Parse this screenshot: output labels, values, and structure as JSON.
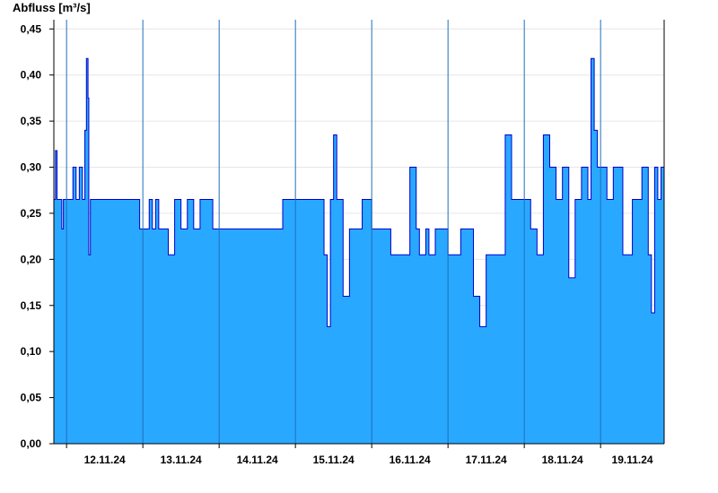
{
  "chart_data": {
    "type": "area",
    "title": "",
    "xlabel": "",
    "ylabel": "Abfluss [m³/s]",
    "ylim": [
      0,
      0.46
    ],
    "yticks": [
      0,
      0.05,
      0.1,
      0.15,
      0.2,
      0.25,
      0.3,
      0.35,
      0.4,
      0.45
    ],
    "ytick_labels": [
      "0,00",
      "0,05",
      "0,10",
      "0,15",
      "0,20",
      "0,25",
      "0,30",
      "0,35",
      "0,40",
      "0,45"
    ],
    "xlim": [
      "11.11.24 20:00",
      "19.11.24 20:00"
    ],
    "day_boundaries": [
      "12.11.24 00:00",
      "13.11.24 00:00",
      "14.11.24 00:00",
      "15.11.24 00:00",
      "16.11.24 00:00",
      "17.11.24 00:00",
      "18.11.24 00:00",
      "19.11.24 00:00"
    ],
    "day_labels": [
      "12.11.24",
      "13.11.24",
      "14.11.24",
      "15.11.24",
      "16.11.24",
      "17.11.24",
      "18.11.24",
      "19.11.24"
    ],
    "grid": true,
    "series": [
      {
        "name": "",
        "color": "#0000cc",
        "fill": "#29a8ff",
        "x": [
          "11.11.24 20:00",
          "11.11.24 20:30",
          "11.11.24 21:00",
          "11.11.24 22:00",
          "11.11.24 22:30",
          "11.11.24 23:00",
          "12.11.24 01:30",
          "12.11.24 02:00",
          "12.11.24 03:00",
          "12.11.24 04:00",
          "12.11.24 05:00",
          "12.11.24 05:45",
          "12.11.24 06:15",
          "12.11.24 06:45",
          "12.11.24 07:00",
          "12.11.24 07:30",
          "12.11.24 08:00",
          "12.11.24 12:00",
          "12.11.24 21:00",
          "12.11.24 23:00",
          "13.11.24 02:00",
          "13.11.24 03:00",
          "13.11.24 04:00",
          "13.11.24 05:00",
          "13.11.24 06:00",
          "13.11.24 08:00",
          "13.11.24 10:00",
          "13.11.24 12:00",
          "13.11.24 14:00",
          "13.11.24 16:00",
          "13.11.24 18:00",
          "13.11.24 20:00",
          "13.11.24 22:00",
          "14.11.24 01:00",
          "14.11.24 05:00",
          "14.11.24 12:00",
          "14.11.24 18:00",
          "14.11.24 20:00",
          "14.11.24 23:00",
          "15.11.24 08:00",
          "15.11.24 09:00",
          "15.11.24 10:00",
          "15.11.24 11:00",
          "15.11.24 12:00",
          "15.11.24 13:00",
          "15.11.24 15:00",
          "15.11.24 17:00",
          "15.11.24 19:00",
          "15.11.24 21:00",
          "16.11.24 00:00",
          "16.11.24 03:00",
          "16.11.24 06:00",
          "16.11.24 12:00",
          "16.11.24 14:00",
          "16.11.24 15:00",
          "16.11.24 17:00",
          "16.11.24 18:00",
          "16.11.24 20:00",
          "16.11.24 22:00",
          "17.11.24 00:00",
          "17.11.24 04:00",
          "17.11.24 08:00",
          "17.11.24 10:00",
          "17.11.24 12:00",
          "17.11.24 15:00",
          "17.11.24 18:00",
          "17.11.24 20:00",
          "17.11.24 22:00",
          "18.11.24 02:00",
          "18.11.24 04:00",
          "18.11.24 06:00",
          "18.11.24 08:00",
          "18.11.24 10:00",
          "18.11.24 12:00",
          "18.11.24 14:00",
          "18.11.24 16:00",
          "18.11.24 18:00",
          "18.11.24 20:00",
          "18.11.24 21:00",
          "18.11.24 22:00",
          "18.11.24 23:00",
          "19.11.24 00:00",
          "19.11.24 02:00",
          "19.11.24 04:00",
          "19.11.24 07:00",
          "19.11.24 10:00",
          "19.11.24 13:00",
          "19.11.24 15:00",
          "19.11.24 16:00",
          "19.11.24 17:00",
          "19.11.24 18:00",
          "19.11.24 19:00",
          "19.11.24 20:00"
        ],
        "values": [
          0.265,
          0.318,
          0.265,
          0.265,
          0.233,
          0.265,
          0.265,
          0.3,
          0.265,
          0.3,
          0.265,
          0.34,
          0.418,
          0.375,
          0.205,
          0.265,
          0.265,
          0.265,
          0.265,
          0.233,
          0.265,
          0.233,
          0.265,
          0.233,
          0.233,
          0.205,
          0.265,
          0.233,
          0.265,
          0.233,
          0.265,
          0.265,
          0.233,
          0.233,
          0.233,
          0.233,
          0.233,
          0.265,
          0.265,
          0.265,
          0.205,
          0.127,
          0.265,
          0.335,
          0.265,
          0.16,
          0.233,
          0.233,
          0.265,
          0.233,
          0.233,
          0.205,
          0.3,
          0.233,
          0.205,
          0.233,
          0.205,
          0.233,
          0.233,
          0.205,
          0.233,
          0.16,
          0.127,
          0.205,
          0.205,
          0.335,
          0.265,
          0.265,
          0.233,
          0.205,
          0.335,
          0.3,
          0.265,
          0.3,
          0.18,
          0.265,
          0.3,
          0.265,
          0.418,
          0.34,
          0.3,
          0.3,
          0.265,
          0.3,
          0.205,
          0.265,
          0.3,
          0.205,
          0.142,
          0.3,
          0.265,
          0.3,
          0.3
        ]
      }
    ]
  }
}
